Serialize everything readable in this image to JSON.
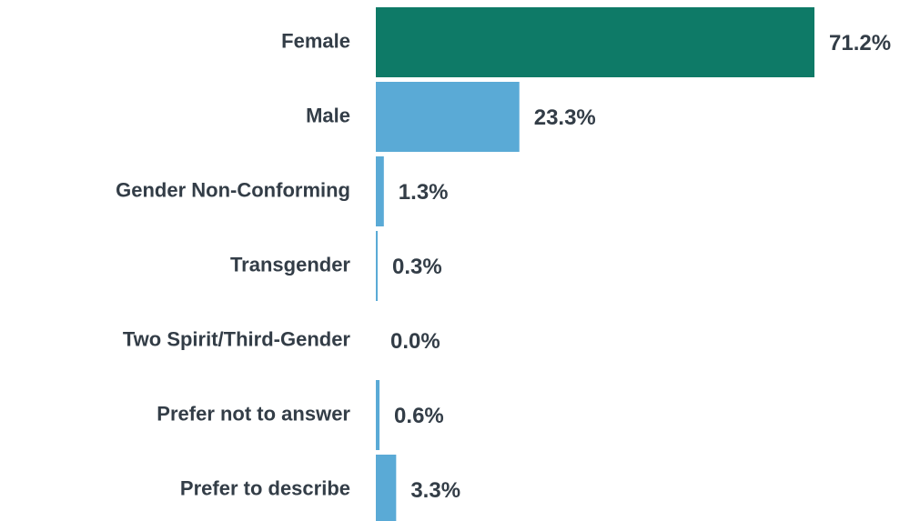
{
  "chart_data": {
    "type": "hbar",
    "categories": [
      "Female",
      "Male",
      "Gender Non-Conforming",
      "Transgender",
      "Two Spirit/Third-Gender",
      "Prefer not to answer",
      "Prefer to describe"
    ],
    "values": [
      71.2,
      23.3,
      1.3,
      0.3,
      0.0,
      0.6,
      3.3
    ],
    "value_labels": [
      "71.2%",
      "23.3%",
      "1.3%",
      "0.3%",
      "0.0%",
      "0.6%",
      "3.3%"
    ],
    "colors": [
      "#0e7a67",
      "#5aaad6",
      "#5aaad6",
      "#5aaad6",
      "#5aaad6",
      "#5aaad6",
      "#5aaad6"
    ]
  }
}
